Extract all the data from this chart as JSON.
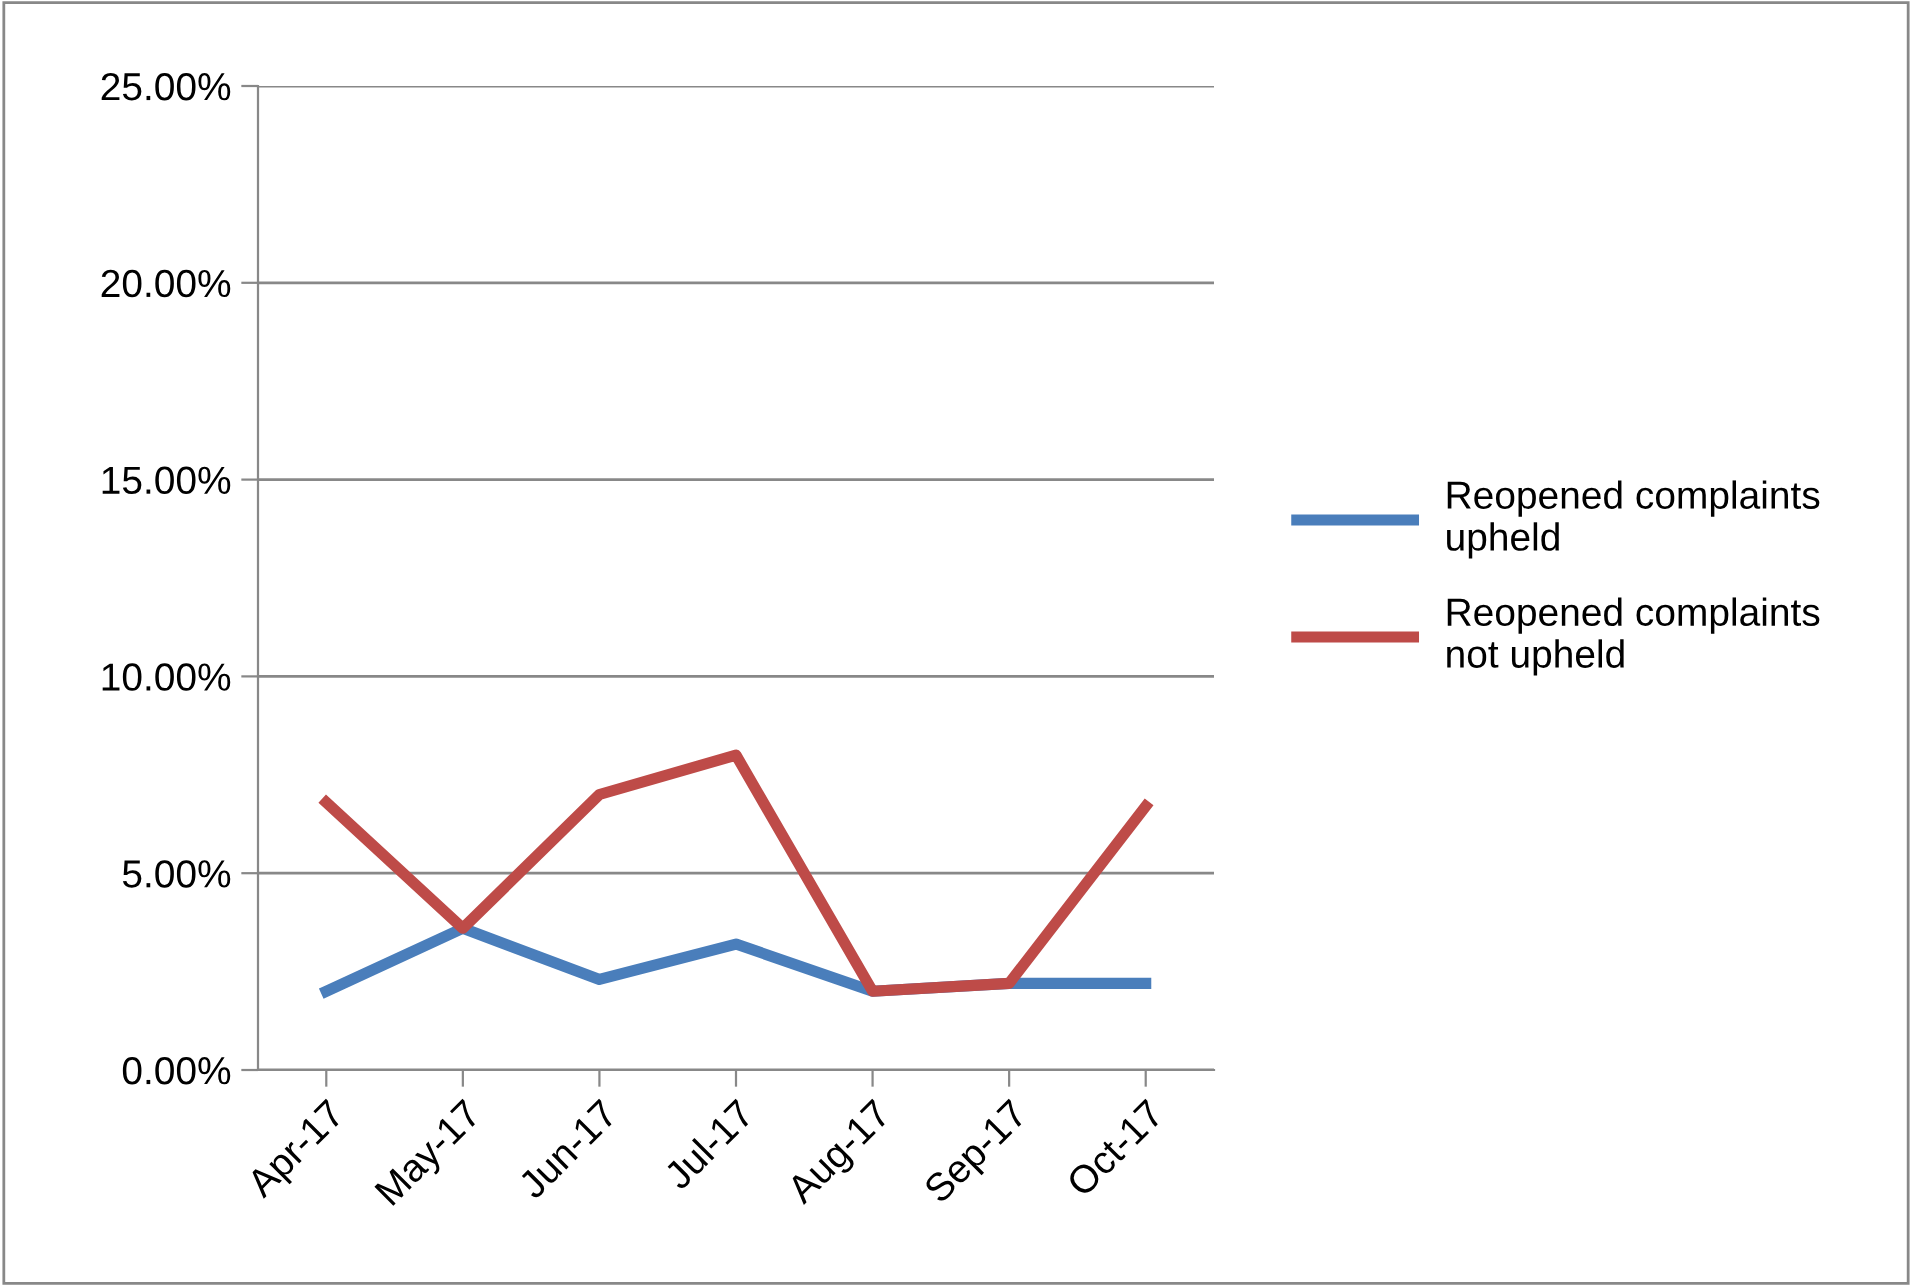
{
  "chart_data": {
    "type": "line",
    "categories": [
      "Apr-17",
      "May-17",
      "Jun-17",
      "Jul-17",
      "Aug-17",
      "Sep-17",
      "Oct-17"
    ],
    "series": [
      {
        "name": "Reopened complaints upheld",
        "color": "#4a7ebb",
        "values": [
          2.0,
          3.6,
          2.3,
          3.2,
          2.0,
          2.2,
          2.2
        ]
      },
      {
        "name": "Reopened complaints not upheld",
        "color": "#be4b48",
        "values": [
          6.8,
          3.6,
          7.0,
          8.0,
          2.0,
          2.2,
          6.7
        ]
      }
    ],
    "ylim": [
      0,
      25
    ],
    "yticks": [
      {
        "value": 0,
        "label": "0.00%"
      },
      {
        "value": 5,
        "label": "5.00%"
      },
      {
        "value": 10,
        "label": "10.00%"
      },
      {
        "value": 15,
        "label": "15.00%"
      },
      {
        "value": 20,
        "label": "20.00%"
      },
      {
        "value": 25,
        "label": "25.00%"
      }
    ],
    "grid": "y",
    "legend": "right",
    "marker": "none",
    "line_style": "solid"
  }
}
